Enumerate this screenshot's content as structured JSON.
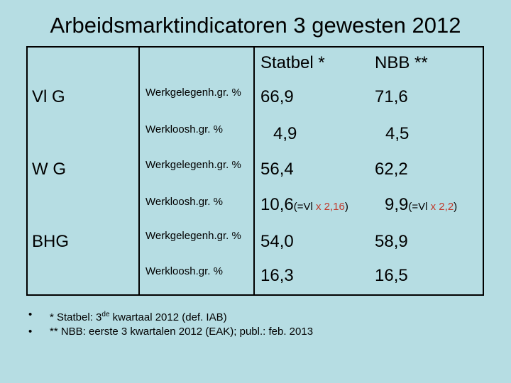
{
  "title": "Arbeidsmarktindicatoren 3 gewesten 2012",
  "headers": {
    "statbel": "Statbel *",
    "nbb": "NBB **"
  },
  "rows": [
    {
      "region": "Vl G",
      "indicator": "Werkgelegenh.gr. %",
      "statbel": "66,9",
      "nbb": "71,6"
    },
    {
      "region": "",
      "indicator": "Werkloosh.gr. %",
      "statbel": "4,9",
      "nbb": "4,5"
    },
    {
      "region": "W G",
      "indicator": "Werkgelegenh.gr. %",
      "statbel": "56,4",
      "nbb": "62,2"
    },
    {
      "region": "",
      "indicator": "Werkloosh.gr. %",
      "statbel": "10,6",
      "statbel_note_pre": "(=Vl ",
      "statbel_note_red": "x 2,16",
      "statbel_note_post": ")",
      "nbb": "9,9",
      "nbb_note_pre": "(=Vl ",
      "nbb_note_red": "x 2,2",
      "nbb_note_post": ")"
    },
    {
      "region": "BHG",
      "indicator": "Werkgelegenh.gr. %",
      "statbel": "54,0",
      "nbb": "58,9"
    },
    {
      "region": "",
      "indicator": "Werkloosh.gr. %",
      "statbel": "16,3",
      "nbb": "16,5"
    }
  ],
  "footnotes": {
    "bullet": "•",
    "note1_pre": "* Statbel: 3",
    "note1_sup": "de",
    "note1_post": " kwartaal 2012 (def. IAB)",
    "note2": "** NBB: eerste 3 kwartalen 2012 (EAK); publ.: feb. 2013"
  }
}
